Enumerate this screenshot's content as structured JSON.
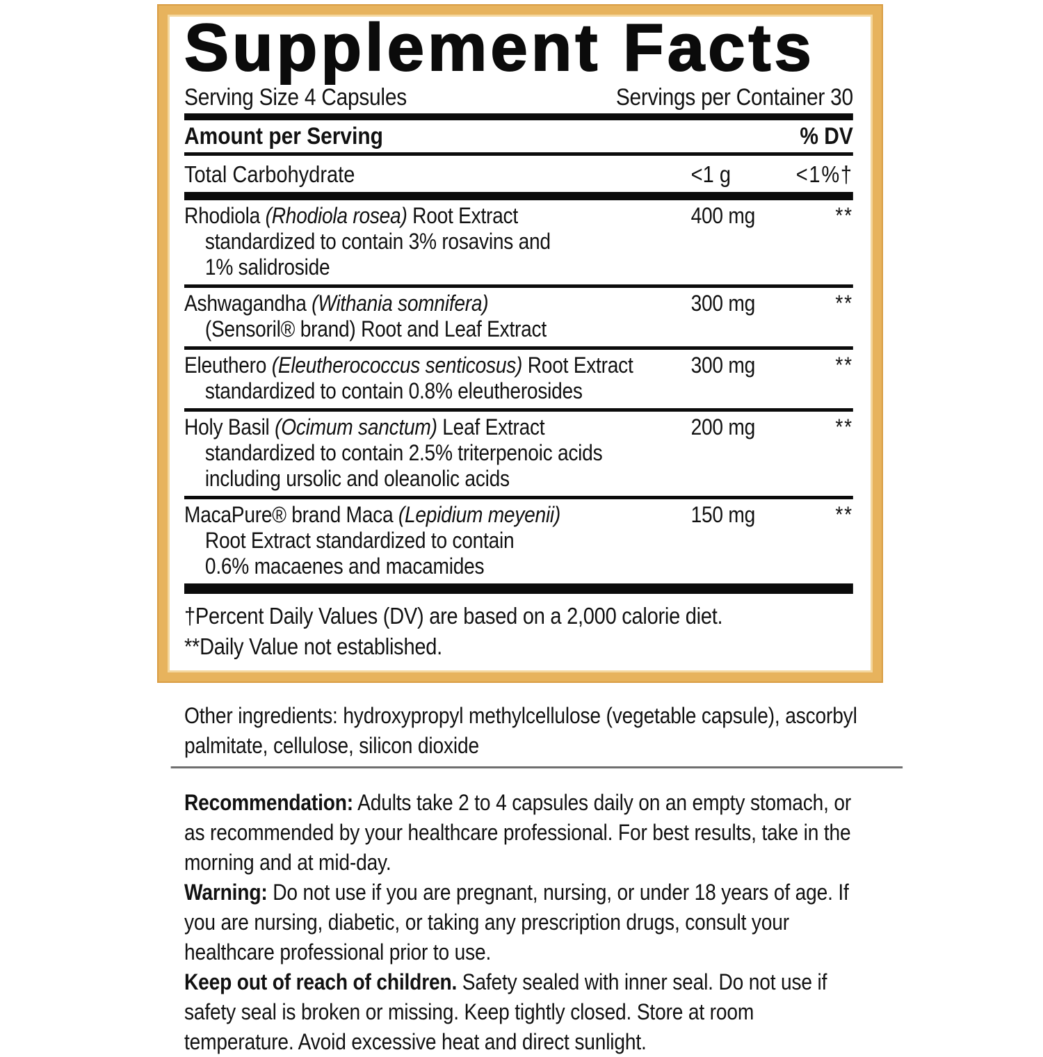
{
  "panel": {
    "title": "Supplement Facts",
    "serving_size": "Serving Size 4 Capsules",
    "servings_per_container": "Servings per Container 30",
    "border_color": "#e7b35d",
    "header": {
      "amount_label": "Amount per Serving",
      "dv_label": "% DV"
    },
    "carb_row": {
      "name": "Total Carbohydrate",
      "amount": "<1 g",
      "dv": "<1%†"
    },
    "rows": [
      {
        "name_pre": "Rhodiola ",
        "name_italic": "(Rhodiola rosea)",
        "name_post": " Root Extract",
        "sub": [
          "standardized to contain 3% rosavins and",
          "1% salidroside"
        ],
        "amount": "400 mg",
        "dv": "**"
      },
      {
        "name_pre": "Ashwagandha ",
        "name_italic": "(Withania somnifera)",
        "name_post": "",
        "sub": [
          "(Sensoril® brand) Root and Leaf Extract"
        ],
        "amount": "300 mg",
        "dv": "**"
      },
      {
        "name_pre": "Eleuthero ",
        "name_italic": "(Eleutherococcus senticosus)",
        "name_post": " Root Extract",
        "sub": [
          "standardized to contain 0.8% eleutherosides"
        ],
        "amount": "300 mg",
        "dv": "**"
      },
      {
        "name_pre": "Holy Basil ",
        "name_italic": "(Ocimum sanctum)",
        "name_post": " Leaf Extract",
        "sub": [
          "standardized to contain 2.5% triterpenoic acids",
          "including ursolic and oleanolic acids"
        ],
        "amount": "200 mg",
        "dv": "**"
      },
      {
        "name_pre": "MacaPure® brand Maca ",
        "name_italic": "(Lepidium meyenii)",
        "name_post": "",
        "sub": [
          "Root Extract standardized to contain",
          "0.6% macaenes and macamides"
        ],
        "amount": "150 mg",
        "dv": "**"
      }
    ],
    "footnotes": [
      "†Percent Daily Values (DV) are based on a 2,000 calorie diet.",
      "**Daily Value not established."
    ]
  },
  "sections": {
    "divider_color": "#6f6f6f",
    "other_ingredients": "Other ingredients: hydroxypropyl methylcellulose (vegetable capsule), ascorbyl palmitate, cellulose, silicon dioxide",
    "recommendation": {
      "label": "Recommendation:",
      "text": "Adults take 2 to 4 capsules daily on an empty stomach, or as recommended by your healthcare professional. For best results, take in the morning and at mid-day."
    },
    "warning": {
      "label": "Warning:",
      "text": "Do not use if you are pregnant, nursing, or under 18 years of age. If you are nursing, diabetic, or taking any prescription drugs, consult your healthcare professional prior to use."
    },
    "children": {
      "label": "Keep out of reach of children.",
      "text": "Safety sealed with inner seal. Do not use if safety seal is broken or missing. Keep tightly closed. Store at room temperature. Avoid excessive heat and direct sunlight."
    }
  }
}
